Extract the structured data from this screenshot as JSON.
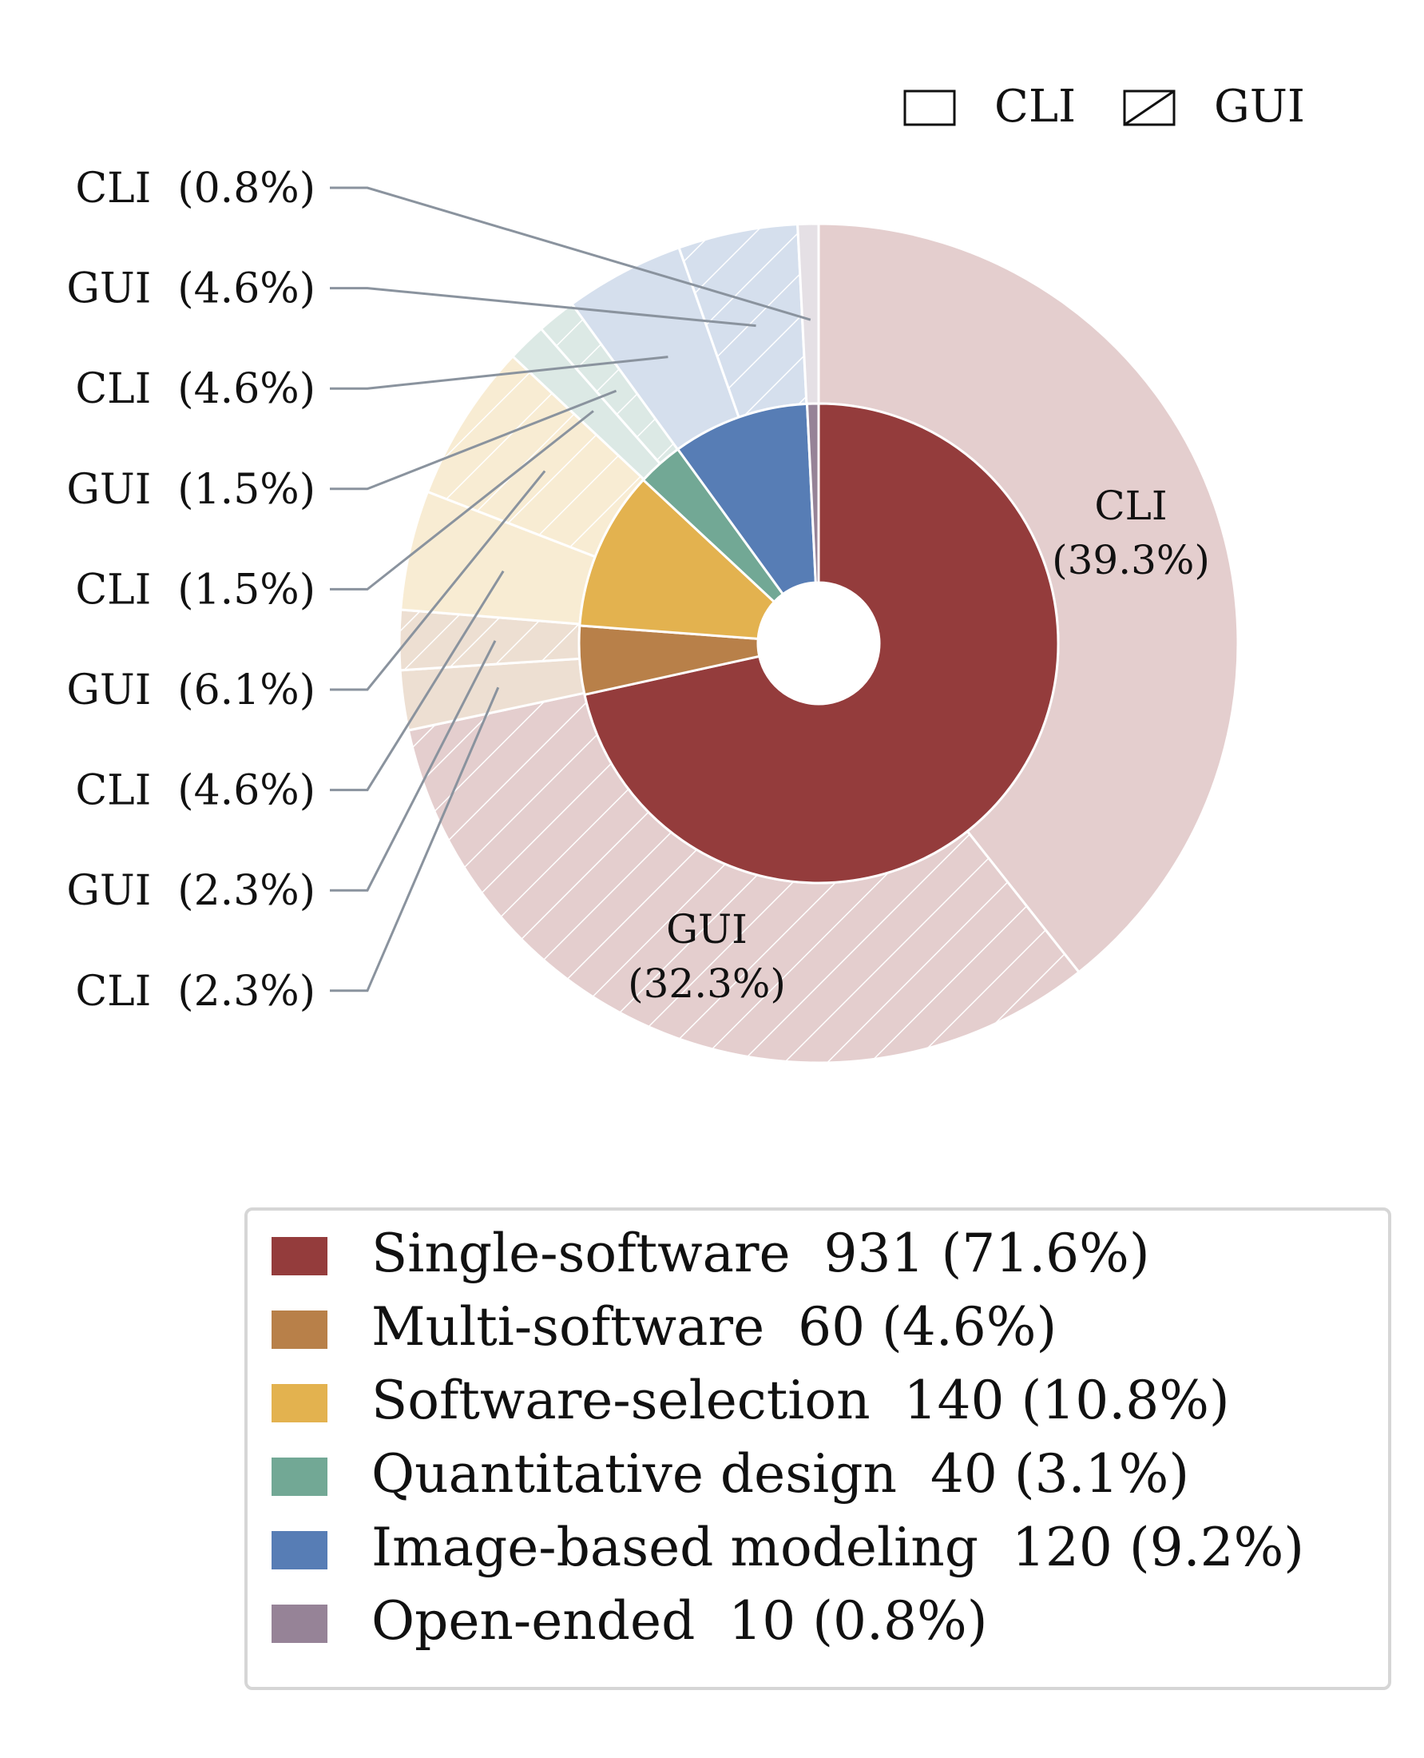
{
  "chart_data": {
    "type": "pie",
    "inner_ring": {
      "slices": [
        {
          "label": "Single-software",
          "value": 931,
          "percent": "71.6%",
          "color": "#943c3c"
        },
        {
          "label": "Multi-software",
          "value": 60,
          "percent": "4.6%",
          "color": "#b88049"
        },
        {
          "label": "Software-selection",
          "value": 140,
          "percent": "10.8%",
          "color": "#e3b24f"
        },
        {
          "label": "Quantitative design",
          "value": 40,
          "percent": "3.1%",
          "color": "#72a895"
        },
        {
          "label": "Image-based modeling",
          "value": 120,
          "percent": "9.2%",
          "color": "#577db5"
        },
        {
          "label": "Open-ended",
          "value": 10,
          "percent": "0.8%",
          "color": "#968397"
        }
      ]
    },
    "outer_ring": {
      "slices": [
        {
          "parent": "Single-software",
          "interface": "CLI",
          "percent": 39.3,
          "label": "CLI  (39.3%)",
          "labeled_inside": true
        },
        {
          "parent": "Single-software",
          "interface": "GUI",
          "percent": 32.3,
          "label": "GUI  (32.3%)",
          "labeled_inside": true
        },
        {
          "parent": "Multi-software",
          "interface": "CLI",
          "percent": 2.3,
          "label": "CLI  (2.3%)"
        },
        {
          "parent": "Multi-software",
          "interface": "GUI",
          "percent": 2.3,
          "label": "GUI  (2.3%)"
        },
        {
          "parent": "Software-selection",
          "interface": "CLI",
          "percent": 4.6,
          "label": "CLI  (4.6%)"
        },
        {
          "parent": "Software-selection",
          "interface": "GUI",
          "percent": 6.1,
          "label": "GUI  (6.1%)"
        },
        {
          "parent": "Quantitative design",
          "interface": "CLI",
          "percent": 1.5,
          "label": "CLI  (1.5%)"
        },
        {
          "parent": "Quantitative design",
          "interface": "GUI",
          "percent": 1.5,
          "label": "GUI  (1.5%)"
        },
        {
          "parent": "Image-based modeling",
          "interface": "CLI",
          "percent": 4.6,
          "label": "CLI  (4.6%)"
        },
        {
          "parent": "Image-based modeling",
          "interface": "GUI",
          "percent": 4.6,
          "label": "GUI  (4.6%)"
        },
        {
          "parent": "Open-ended",
          "interface": "CLI",
          "percent": 0.8,
          "label": "CLI  (0.8%)"
        }
      ],
      "callout_order": [
        "CLI  (0.8%)",
        "GUI  (4.6%)",
        "CLI  (4.6%)",
        "GUI  (1.5%)",
        "CLI  (1.5%)",
        "GUI  (6.1%)",
        "CLI  (4.6%)",
        "GUI  (2.3%)",
        "CLI  (2.3%)"
      ]
    },
    "inside_labels": {
      "cli": {
        "name": "CLI",
        "pct": "(39.3%)"
      },
      "gui": {
        "name": "GUI",
        "pct": "(32.3%)"
      }
    },
    "hatch_legend": {
      "placement": "top-right",
      "items": [
        {
          "label": "CLI",
          "pattern": "none"
        },
        {
          "label": "GUI",
          "pattern": "hatched"
        }
      ]
    },
    "legend": {
      "placement": "bottom",
      "items": [
        {
          "text": "Single-software  931 (71.6%)",
          "color": "#943c3c"
        },
        {
          "text": "Multi-software  60 (4.6%)",
          "color": "#b88049"
        },
        {
          "text": "Software-selection  140 (10.8%)",
          "color": "#e3b24f"
        },
        {
          "text": "Quantitative design  40 (3.1%)",
          "color": "#72a895"
        },
        {
          "text": "Image-based modeling  120 (9.2%)",
          "color": "#577db5"
        },
        {
          "text": "Open-ended  10 (0.8%)",
          "color": "#968397"
        }
      ]
    },
    "colors": {
      "callout_line": "#8a939e",
      "edge": "#ffffff",
      "outer_tint_alpha": 0.25
    }
  }
}
